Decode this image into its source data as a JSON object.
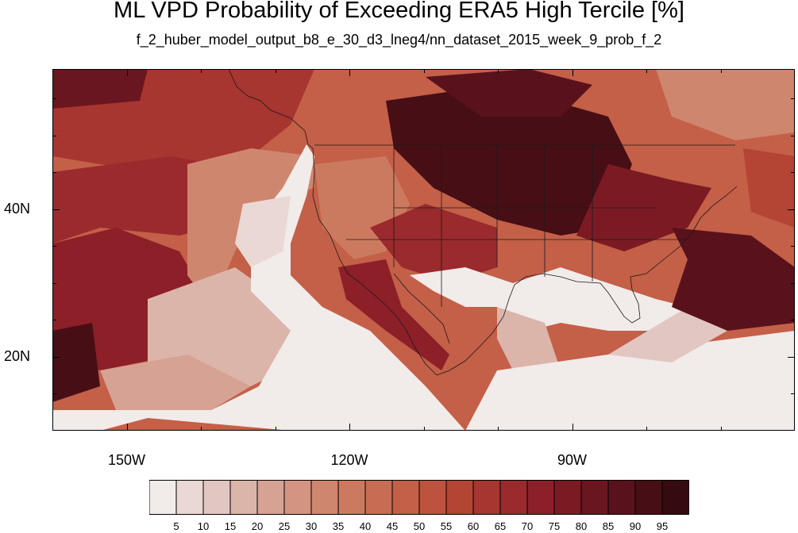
{
  "title": "ML VPD Probability of Exceeding ERA5 High Tercile [%]",
  "subtitle": "f_2_huber_model_output_b8_e_30_d3_lneg4/nn_dataset_2015_week_9_prob_f_2",
  "map": {
    "region": "North America and eastern Pacific",
    "lon_range": [
      -160,
      -60
    ],
    "lat_range": [
      10,
      59
    ],
    "x_ticks": [
      {
        "lon": -150,
        "label": "150W"
      },
      {
        "lon": -120,
        "label": "120W"
      },
      {
        "lon": -90,
        "label": "90W"
      }
    ],
    "y_ticks": [
      {
        "lat": 40,
        "label": "40N"
      },
      {
        "lat": 20,
        "label": "20N"
      }
    ],
    "projection": "cylindrical equidistant",
    "overlays": [
      "coastlines",
      "US state boundaries"
    ]
  },
  "colorbar": {
    "levels": [
      "5",
      "10",
      "15",
      "20",
      "25",
      "30",
      "35",
      "40",
      "45",
      "50",
      "55",
      "60",
      "65",
      "70",
      "75",
      "80",
      "85",
      "90",
      "95"
    ],
    "colors": [
      "#f1ebea",
      "#ead8d5",
      "#e2c6c1",
      "#dcb5aa",
      "#d6a294",
      "#d39481",
      "#cf866e",
      "#cc7a5f",
      "#c96c54",
      "#c45f48",
      "#bd533e",
      "#b44434",
      "#a73530",
      "#9a2a2d",
      "#8c1f28",
      "#7c1a24",
      "#6a1620",
      "#59121b",
      "#470f15",
      "#360b10"
    ]
  }
}
